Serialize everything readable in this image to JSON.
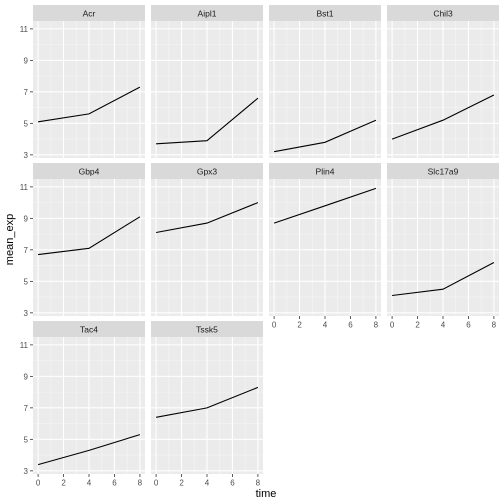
{
  "chart_data": {
    "type": "line",
    "facet_layout": "wrap",
    "ncol": 4,
    "xlabel": "time",
    "ylabel": "mean_exp",
    "xlim": [
      -0.4,
      8.4
    ],
    "ylim": [
      2.8,
      11.5
    ],
    "x_ticks": [
      0,
      2,
      4,
      6,
      8
    ],
    "y_ticks": [
      3,
      5,
      7,
      9,
      11
    ],
    "grid": true,
    "legend": "none",
    "colors": {
      "panel_bg": "#ebebeb",
      "strip_bg": "#d9d9d9",
      "grid_major": "#ffffff",
      "line": "#000000"
    },
    "panels": [
      {
        "name": "Acr",
        "x": [
          0,
          4,
          8
        ],
        "y": [
          5.1,
          5.6,
          7.3
        ]
      },
      {
        "name": "Aipl1",
        "x": [
          0,
          4,
          8
        ],
        "y": [
          3.7,
          3.9,
          6.6
        ]
      },
      {
        "name": "Bst1",
        "x": [
          0,
          4,
          8
        ],
        "y": [
          3.2,
          3.8,
          5.2
        ]
      },
      {
        "name": "Chil3",
        "x": [
          0,
          4,
          8
        ],
        "y": [
          4.0,
          5.2,
          6.8
        ]
      },
      {
        "name": "Gbp4",
        "x": [
          0,
          4,
          8
        ],
        "y": [
          6.7,
          7.1,
          9.1
        ]
      },
      {
        "name": "Gpx3",
        "x": [
          0,
          4,
          8
        ],
        "y": [
          8.1,
          8.7,
          10.0
        ]
      },
      {
        "name": "Plin4",
        "x": [
          0,
          4,
          8
        ],
        "y": [
          8.7,
          9.8,
          10.9
        ]
      },
      {
        "name": "Slc17a9",
        "x": [
          0,
          4,
          8
        ],
        "y": [
          4.1,
          4.5,
          6.2
        ]
      },
      {
        "name": "Tac4",
        "x": [
          0,
          4,
          8
        ],
        "y": [
          3.4,
          4.3,
          5.3
        ]
      },
      {
        "name": "Tssk5",
        "x": [
          0,
          4,
          8
        ],
        "y": [
          6.4,
          7.0,
          8.3
        ]
      }
    ]
  }
}
